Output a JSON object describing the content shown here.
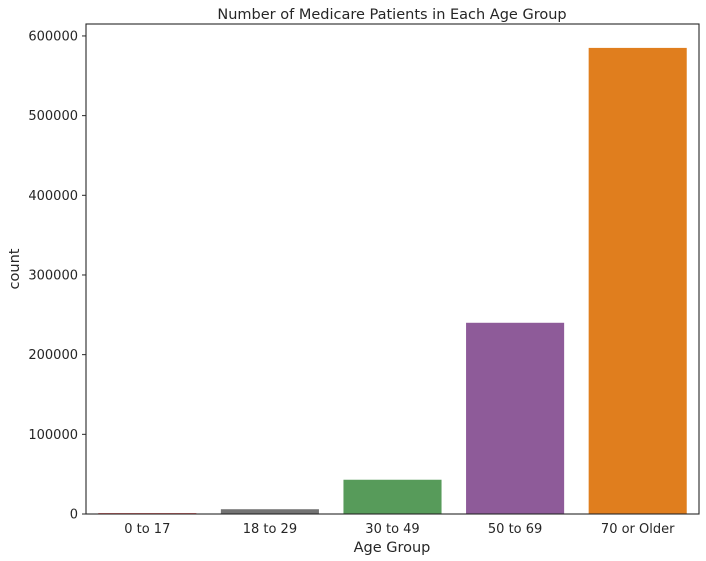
{
  "chart_data": {
    "type": "bar",
    "title": "Number of Medicare Patients in Each Age Group",
    "xlabel": "Age Group",
    "ylabel": "count",
    "categories": [
      "0 to 17",
      "18 to 29",
      "30 to 49",
      "50 to 69",
      "70 or Older"
    ],
    "values": [
      1000,
      6000,
      43000,
      240000,
      585000
    ],
    "colors": [
      "#e41a1c",
      "#737373",
      "#579b5a",
      "#8e5b99",
      "#e07e1e"
    ],
    "ylim": [
      0,
      615000
    ],
    "yticks": [
      0,
      100000,
      200000,
      300000,
      400000,
      500000,
      600000
    ],
    "ytick_labels": [
      "0",
      "100000",
      "200000",
      "300000",
      "400000",
      "500000",
      "600000"
    ],
    "grid": false,
    "legend": "none"
  }
}
